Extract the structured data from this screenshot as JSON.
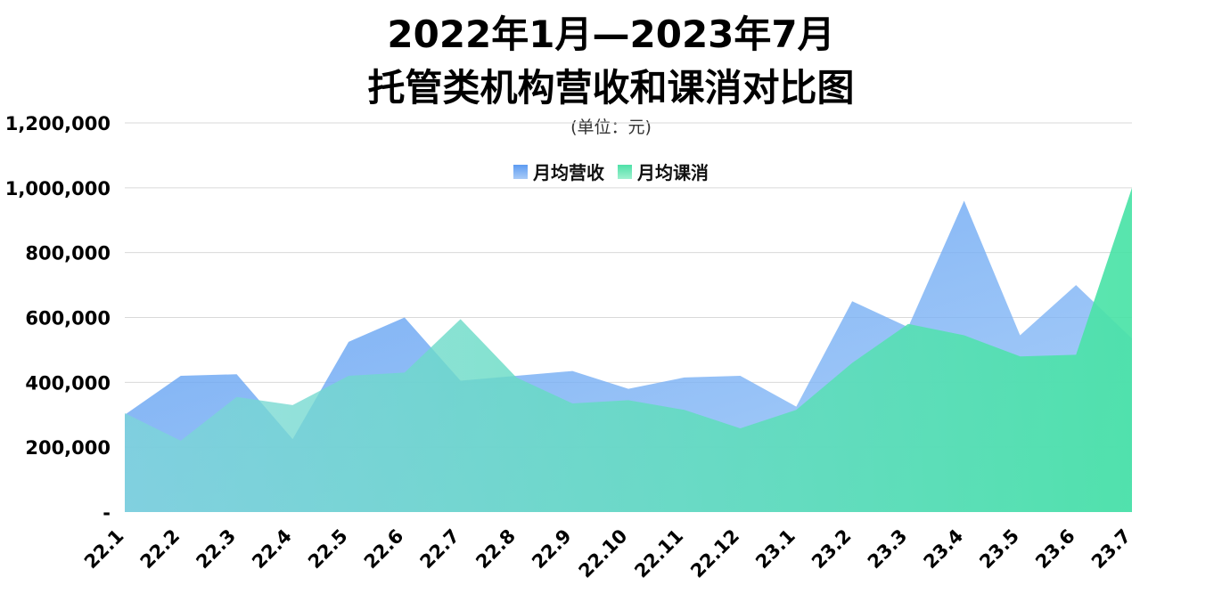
{
  "chart_data": {
    "type": "area",
    "title_line1": "2022年1月—2023年7月",
    "title_line2": "托管类机构营收和课消对比图",
    "subtitle": "(单位：元)",
    "xlabel": "",
    "ylabel": "",
    "ylim": [
      0,
      1200000
    ],
    "y_ticks": [
      "-",
      "200,000",
      "400,000",
      "600,000",
      "800,000",
      "1,000,000",
      "1,200,000"
    ],
    "categories": [
      "22.1",
      "22.2",
      "22.3",
      "22.4",
      "22.5",
      "22.6",
      "22.7",
      "22.8",
      "22.9",
      "22.10",
      "22.11",
      "22.12",
      "23.1",
      "23.2",
      "23.3",
      "23.4",
      "23.5",
      "23.6",
      "23.7"
    ],
    "grid": true,
    "legend_position": "top-center",
    "series": [
      {
        "name": "月均营收",
        "color": "#6aa8f4",
        "values": [
          300000,
          420000,
          425000,
          225000,
          525000,
          600000,
          405000,
          420000,
          435000,
          380000,
          415000,
          420000,
          325000,
          650000,
          570000,
          960000,
          545000,
          700000,
          535000
        ]
      },
      {
        "name": "月均课消",
        "color": "#5de3b0",
        "values": [
          305000,
          220000,
          355000,
          330000,
          420000,
          430000,
          595000,
          415000,
          335000,
          345000,
          315000,
          258000,
          315000,
          460000,
          580000,
          545000,
          480000,
          485000,
          1000000
        ]
      }
    ]
  }
}
